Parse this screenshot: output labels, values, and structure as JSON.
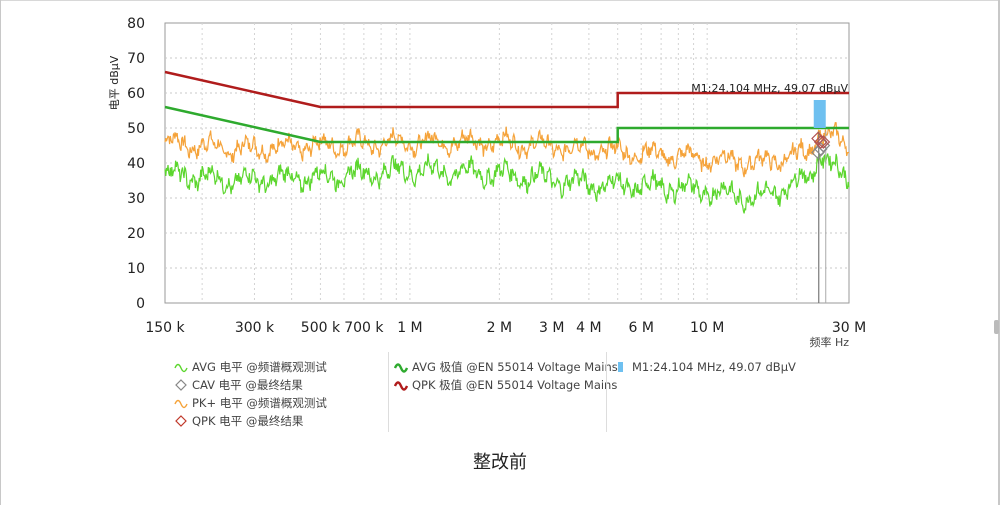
{
  "chart_data": {
    "type": "line",
    "ylabel": "电平 dBµV",
    "xlabel": "频率 Hz",
    "x_scale": "log",
    "xlim": [
      150000,
      30000000
    ],
    "ylim": [
      0,
      80
    ],
    "yticks": [
      0,
      10,
      20,
      30,
      40,
      50,
      60,
      70,
      80
    ],
    "xticks": [
      {
        "value": 150000,
        "label": "150 k"
      },
      {
        "value": 300000,
        "label": "300 k"
      },
      {
        "value": 500000,
        "label": "500 k"
      },
      {
        "value": 700000,
        "label": "700 k"
      },
      {
        "value": 1000000,
        "label": "1 M"
      },
      {
        "value": 2000000,
        "label": "2 M"
      },
      {
        "value": 3000000,
        "label": "3 M"
      },
      {
        "value": 4000000,
        "label": "4 M"
      },
      {
        "value": 6000000,
        "label": "6 M"
      },
      {
        "value": 10000000,
        "label": "10 M"
      },
      {
        "value": 30000000,
        "label": "30 M"
      }
    ],
    "grid": true,
    "limits": [
      {
        "name": "QPK 极值 @EN 55014 Voltage Mains",
        "color": "#b01c1c",
        "points": [
          [
            150000,
            66
          ],
          [
            500000,
            56
          ],
          [
            5000000,
            56
          ],
          [
            5000000,
            60
          ],
          [
            30000000,
            60
          ]
        ]
      },
      {
        "name": "AVG 极值 @EN 55014 Voltage Mains",
        "color": "#2eaa2e",
        "points": [
          [
            150000,
            56
          ],
          [
            500000,
            46
          ],
          [
            5000000,
            46
          ],
          [
            5000000,
            50
          ],
          [
            30000000,
            50
          ]
        ]
      }
    ],
    "series": [
      {
        "name": "PK+ 电平 @频谱概观测试",
        "color": "#f5a33a",
        "trend": [
          [
            150000,
            46
          ],
          [
            250000,
            44
          ],
          [
            500000,
            45
          ],
          [
            1000000,
            46
          ],
          [
            2000000,
            46
          ],
          [
            4000000,
            44
          ],
          [
            8000000,
            42
          ],
          [
            15000000,
            40
          ],
          [
            22000000,
            43
          ],
          [
            24000000,
            49
          ],
          [
            27000000,
            47
          ],
          [
            30000000,
            44
          ]
        ]
      },
      {
        "name": "AVG 电平 @频谱概观测试",
        "color": "#5cd62e",
        "trend": [
          [
            150000,
            37
          ],
          [
            250000,
            35
          ],
          [
            500000,
            36
          ],
          [
            1000000,
            38
          ],
          [
            2000000,
            37
          ],
          [
            4000000,
            34
          ],
          [
            8000000,
            33
          ],
          [
            15000000,
            30
          ],
          [
            22000000,
            36
          ],
          [
            24000000,
            43
          ],
          [
            27000000,
            38
          ],
          [
            30000000,
            35
          ]
        ]
      }
    ],
    "final_results": [
      {
        "name": "CAV 电平 @最终结果",
        "color": "#888888",
        "points": [
          [
            23600000,
            43
          ],
          [
            24100000,
            44
          ],
          [
            24600000,
            45
          ]
        ]
      },
      {
        "name": "QPK 电平 @最终结果",
        "color": "#b05050",
        "points": [
          [
            23600000,
            47
          ],
          [
            24100000,
            46
          ],
          [
            24600000,
            46
          ]
        ]
      }
    ],
    "marker": {
      "label": "M1:24.104 MHz, 49.07 dBµV",
      "x": 24104000,
      "y": 49.07,
      "color": "#6ec0f0"
    }
  },
  "legend": {
    "col1": [
      {
        "label": "AVG 电平 @频谱概观测试",
        "icon": "wave",
        "color": "#5cd62e"
      },
      {
        "label": "CAV 电平 @最终结果",
        "icon": "diamond",
        "color": "#888888"
      },
      {
        "label": "PK+ 电平 @频谱概观测试",
        "icon": "wave",
        "color": "#f5a33a"
      },
      {
        "label": "QPK 电平 @最终结果",
        "icon": "diamond",
        "color": "#c0392b"
      }
    ],
    "col2": [
      {
        "label": "AVG 极值 @EN 55014 Voltage Mains",
        "icon": "wave-bold",
        "color": "#2eaa2e"
      },
      {
        "label": "QPK 极值 @EN 55014 Voltage Mains",
        "icon": "wave-bold",
        "color": "#b01c1c"
      }
    ],
    "col3": [
      {
        "label": "M1:24.104 MHz, 49.07 dBµV",
        "icon": "marker",
        "color": "#6ec0f0"
      }
    ]
  },
  "caption": "整改前"
}
